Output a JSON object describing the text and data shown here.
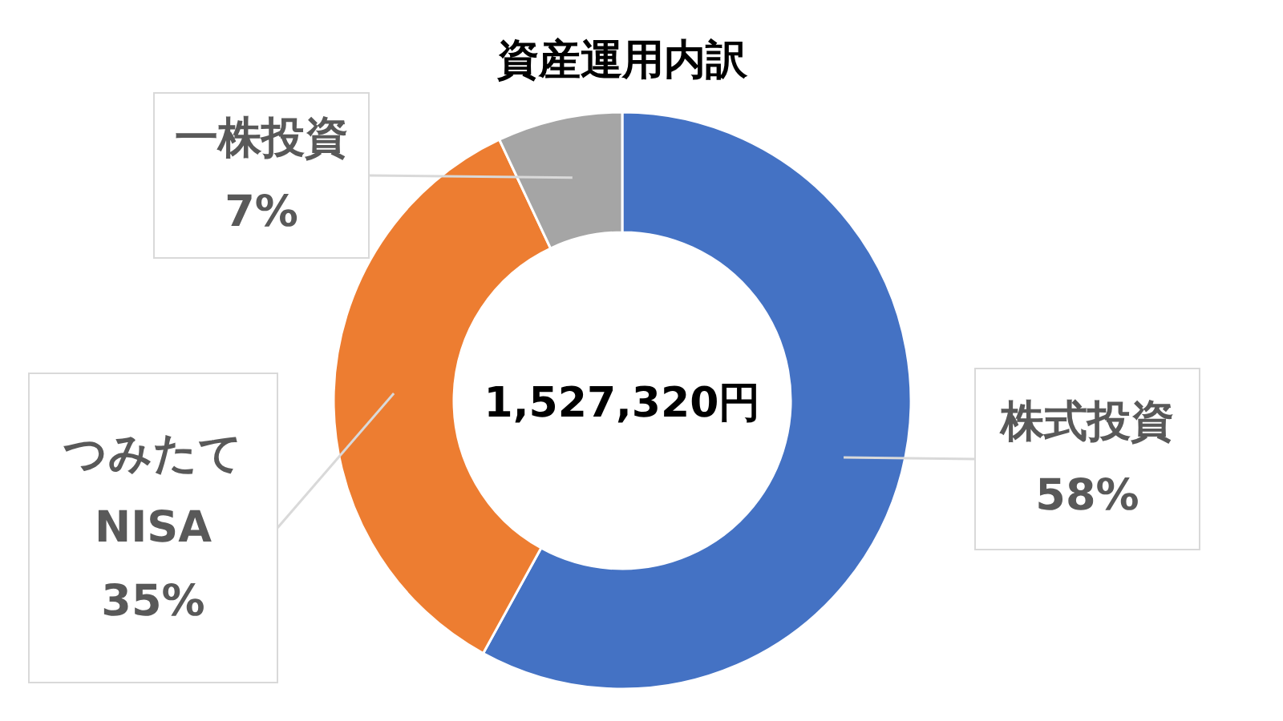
{
  "chart_data": {
    "type": "donut",
    "title": "資産運用内訳",
    "categories": [
      "株式投資",
      "つみたてNISA",
      "一株投資"
    ],
    "values": [
      58,
      35,
      7
    ],
    "colors": [
      "#4472c4",
      "#ed7d31",
      "#a5a5a5"
    ],
    "value_labels": [
      "58%",
      "35%",
      "7%"
    ],
    "annotations": [
      "1,527,320円"
    ],
    "legend": false
  }
}
